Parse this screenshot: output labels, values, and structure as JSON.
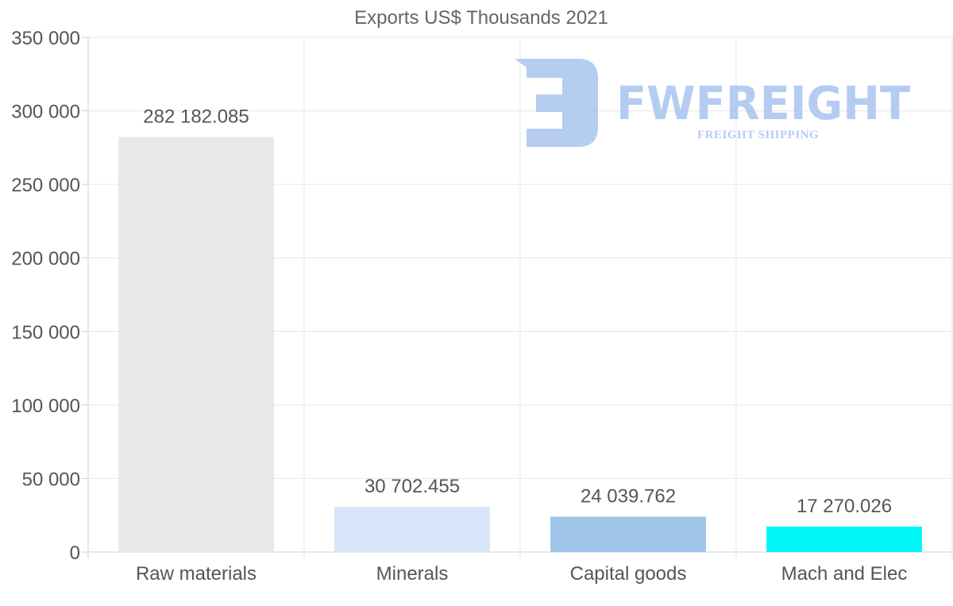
{
  "chart_data": {
    "type": "bar",
    "title": "Exports US$ Thousands 2021",
    "categories": [
      "Raw materials",
      "Minerals",
      "Capital goods",
      "Mach and Elec"
    ],
    "values": [
      282182.085,
      30702.455,
      24039.762,
      17270.026
    ],
    "value_labels": [
      "282 182.085",
      "30 702.455",
      "24 039.762",
      "17 270.026"
    ],
    "colors": [
      "#e8e8e8",
      "#d6e6f8",
      "#9fc5e8",
      "#00f6f6"
    ],
    "ylim": [
      0,
      350000
    ],
    "yticks": [
      0,
      50000,
      100000,
      150000,
      200000,
      250000,
      300000,
      350000
    ],
    "ytick_labels": [
      "0",
      "50 000",
      "100 000",
      "150 000",
      "200 000",
      "250 000",
      "300 000",
      "350 000"
    ],
    "xlabel": "",
    "ylabel": "",
    "grid": true
  },
  "watermark": {
    "brand": "FWFREIGHT",
    "tagline": "FREIGHT SHIPPING",
    "icon": "fw-logo-icon"
  }
}
